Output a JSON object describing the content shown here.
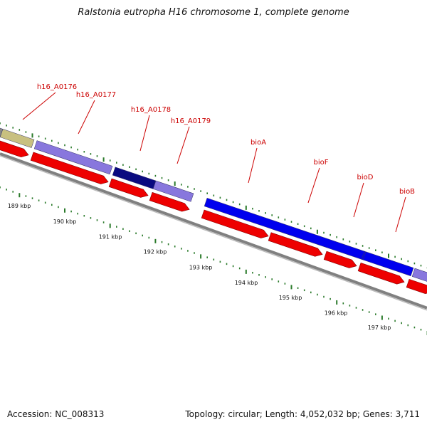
{
  "title": "Ralstonia eutropha H16 chromosome 1, complete genome",
  "footer": {
    "accession": "Accession: NC_008313",
    "summary": "Topology: circular; Length: 4,052,032 bp; Genes: 3,711"
  },
  "colors": {
    "gene_label": "#cc0000",
    "arrow": "#ee0000",
    "tick": "#2a7a2a",
    "backbone": "#808080"
  },
  "genes": [
    {
      "name": "",
      "color": "#c8c080"
    },
    {
      "name": "h16_A0176",
      "color": "#8877dd"
    },
    {
      "name": "h16_A0177",
      "color": "#8877dd"
    },
    {
      "name": "h16_A0178",
      "color": "#0a0a80"
    },
    {
      "name": "h16_A0179",
      "color": "#8877dd"
    },
    {
      "name": "bioA",
      "color": "#0000ee"
    },
    {
      "name": "bioF",
      "color": "#0000ee"
    },
    {
      "name": "bioD",
      "color": "#0000ee"
    },
    {
      "name": "bioB",
      "color": "#8877dd"
    }
  ],
  "gene_labels": [
    "h16_A0176",
    "h16_A0177",
    "h16_A0178",
    "h16_A0179",
    "bioA",
    "bioF",
    "bioD",
    "bioB"
  ],
  "kbp_labels": [
    "189 kbp",
    "190 kbp",
    "191 kbp",
    "192 kbp",
    "193 kbp",
    "194 kbp",
    "195 kbp",
    "196 kbp",
    "197 kbp"
  ]
}
